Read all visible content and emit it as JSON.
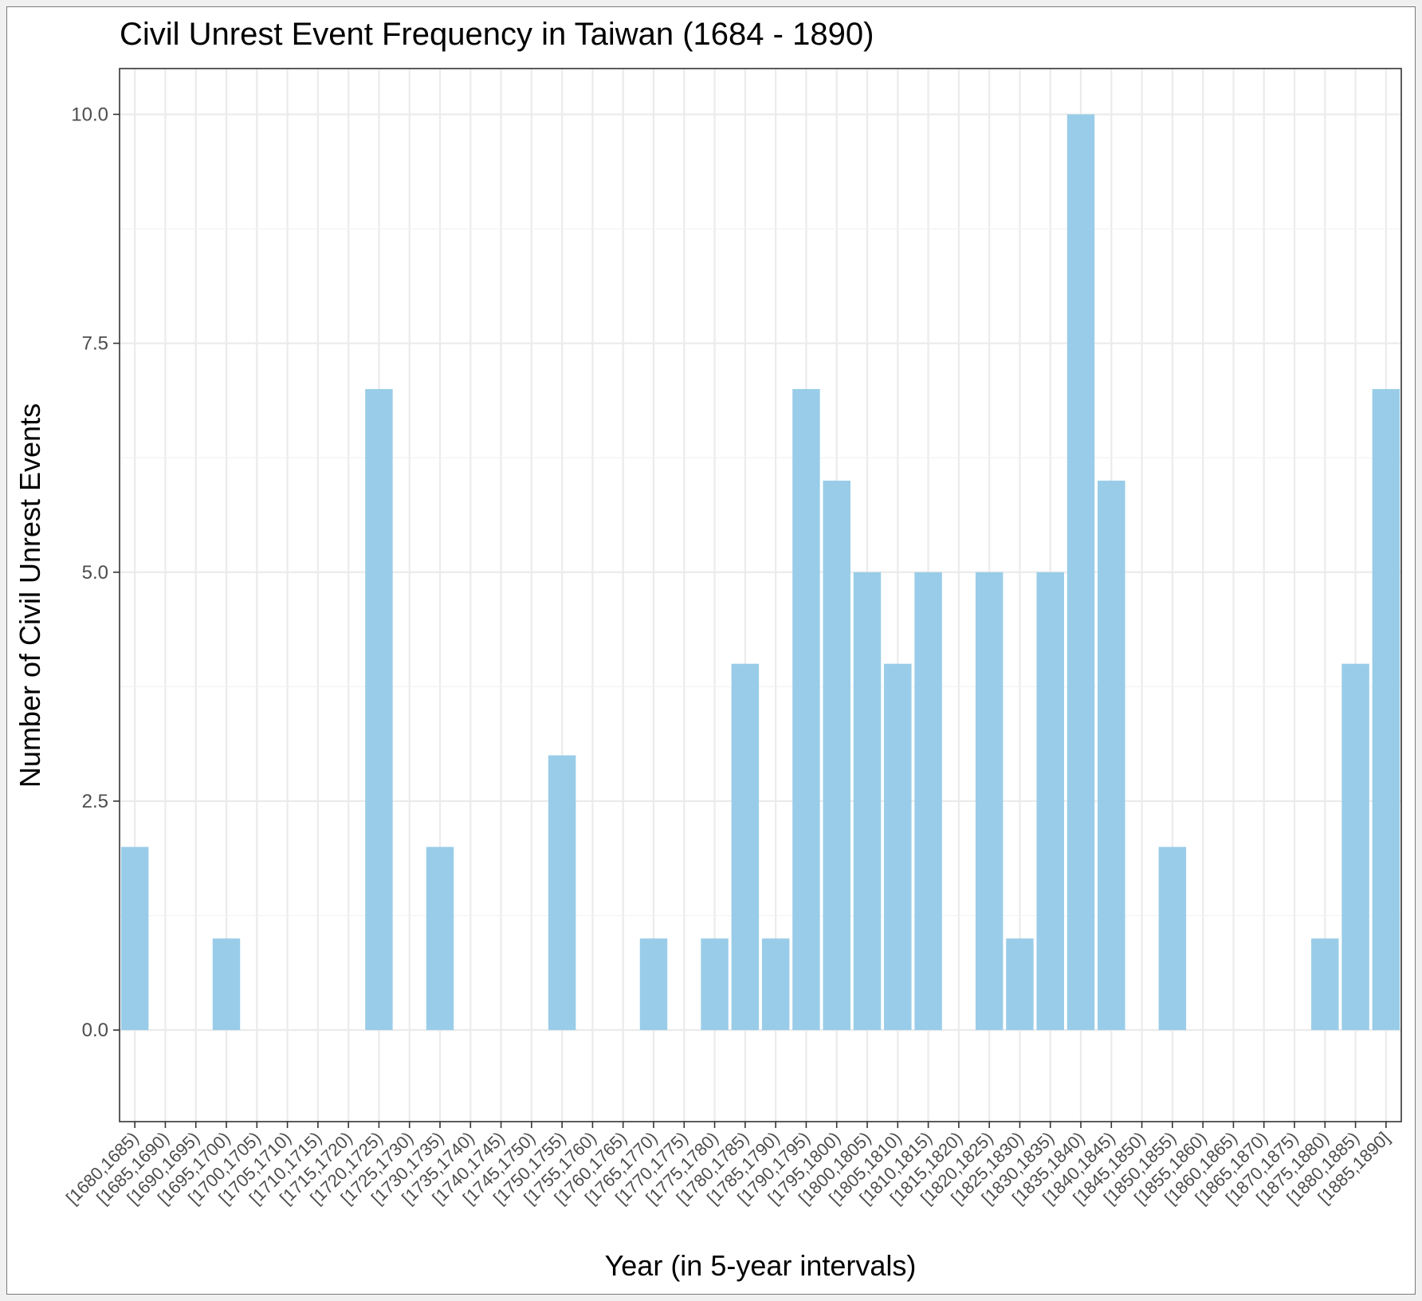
{
  "chart_data": {
    "type": "bar",
    "title": "Civil Unrest Event Frequency in Taiwan (1684 - 1890)",
    "xlabel": "Year (in 5-year intervals)",
    "ylabel": "Number of Civil Unrest Events",
    "ylim": [
      -1,
      10.5
    ],
    "y_ticks": [
      "0.0",
      "2.5",
      "5.0",
      "7.5",
      "10.0"
    ],
    "bar_color": "#99cce8",
    "grid": true,
    "categories": [
      "[1680,1685)",
      "[1685,1690)",
      "[1690,1695)",
      "[1695,1700)",
      "[1700,1705)",
      "[1705,1710)",
      "[1710,1715)",
      "[1715,1720)",
      "[1720,1725)",
      "[1725,1730)",
      "[1730,1735)",
      "[1735,1740)",
      "[1740,1745)",
      "[1745,1750)",
      "[1750,1755)",
      "[1755,1760)",
      "[1760,1765)",
      "[1765,1770)",
      "[1770,1775)",
      "[1775,1780)",
      "[1780,1785)",
      "[1785,1790)",
      "[1790,1795)",
      "[1795,1800)",
      "[1800,1805)",
      "[1805,1810)",
      "[1810,1815)",
      "[1815,1820)",
      "[1820,1825)",
      "[1825,1830)",
      "[1830,1835)",
      "[1835,1840)",
      "[1840,1845)",
      "[1845,1850)",
      "[1850,1855)",
      "[1855,1860)",
      "[1860,1865)",
      "[1865,1870)",
      "[1870,1875)",
      "[1875,1880)",
      "[1880,1885)",
      "[1885,1890]"
    ],
    "values": [
      2,
      0,
      0,
      1,
      0,
      0,
      0,
      0,
      7,
      0,
      2,
      0,
      0,
      0,
      3,
      0,
      0,
      1,
      0,
      1,
      4,
      1,
      7,
      6,
      5,
      4,
      5,
      0,
      5,
      1,
      5,
      10,
      6,
      0,
      2,
      0,
      0,
      0,
      0,
      1,
      4,
      7
    ]
  }
}
